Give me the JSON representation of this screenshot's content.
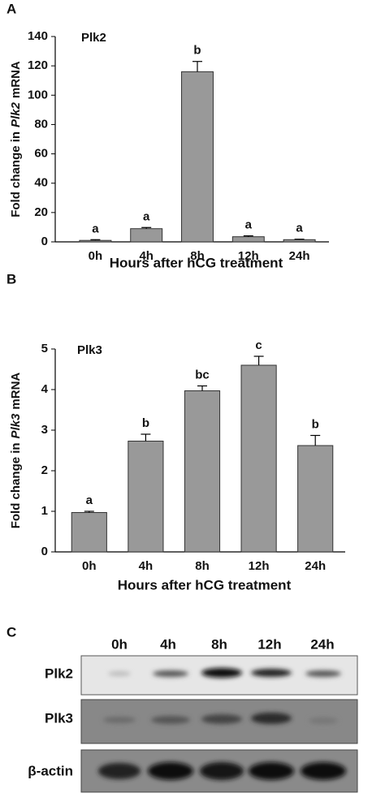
{
  "chart_data": [
    {
      "type": "bar",
      "panel_label": "A",
      "title": "Plk2",
      "ylabel": [
        "Fold change in",
        "Plk2",
        "mRNA"
      ],
      "xlabel": "Hours after hCG treatment",
      "categories": [
        "0h",
        "4h",
        "8h",
        "12h",
        "24h"
      ],
      "values": [
        1,
        9,
        116,
        3.5,
        1.5
      ],
      "errors": [
        0.5,
        0.8,
        7,
        0.6,
        0.3
      ],
      "annotations": [
        "a",
        "a",
        "b",
        "a",
        "a"
      ],
      "color": "#999999",
      "ylim": [
        0,
        140
      ],
      "yticks": [
        0,
        20,
        40,
        60,
        80,
        100,
        120,
        140
      ]
    },
    {
      "type": "bar",
      "panel_label": "B",
      "title": "Plk3",
      "ylabel": [
        "Fold change in",
        "Plk3",
        "mRNA"
      ],
      "xlabel": "Hours after hCG treatment",
      "categories": [
        "0h",
        "4h",
        "8h",
        "12h",
        "24h"
      ],
      "values": [
        0.97,
        2.73,
        3.97,
        4.6,
        2.62
      ],
      "errors": [
        0.03,
        0.17,
        0.12,
        0.22,
        0.25
      ],
      "annotations": [
        "a",
        "b",
        "bc",
        "c",
        "b"
      ],
      "color": "#999999",
      "ylim": [
        0,
        5
      ],
      "yticks": [
        0,
        1,
        2,
        3,
        4,
        5
      ]
    }
  ],
  "blot": {
    "panel_label": "C",
    "lanes": [
      "0h",
      "4h",
      "8h",
      "12h",
      "24h"
    ],
    "rows": [
      "Plk2",
      "Plk3",
      "β-actin"
    ]
  }
}
